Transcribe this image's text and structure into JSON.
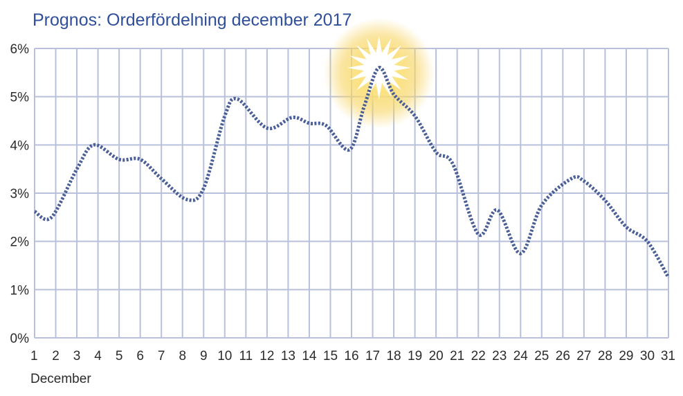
{
  "chart_data": {
    "type": "line",
    "title": "Prognos: Orderfördelning december 2017",
    "xlabel": "December",
    "ylabel": "",
    "x": [
      1,
      2,
      3,
      4,
      5,
      6,
      7,
      8,
      9,
      10,
      11,
      12,
      13,
      14,
      15,
      16,
      17,
      18,
      19,
      20,
      21,
      22,
      23,
      24,
      25,
      26,
      27,
      28,
      29,
      30,
      31
    ],
    "y_ticks": [
      "0%",
      "1%",
      "2%",
      "3%",
      "4%",
      "5%",
      "6%"
    ],
    "ylim": [
      0,
      6
    ],
    "xlim": [
      1,
      31
    ],
    "grid": true,
    "highlight": {
      "x": 17.3,
      "y": 5.6,
      "marker": "sun-burst"
    },
    "series": [
      {
        "values": [
          [
            1.0,
            2.62
          ],
          [
            1.8,
            2.5
          ],
          [
            3.0,
            3.5
          ],
          [
            3.8,
            4.0
          ],
          [
            5.0,
            3.7
          ],
          [
            6.0,
            3.7
          ],
          [
            7.0,
            3.3
          ],
          [
            8.2,
            2.87
          ],
          [
            9.0,
            3.1
          ],
          [
            10.0,
            4.6
          ],
          [
            10.6,
            4.95
          ],
          [
            12.0,
            4.35
          ],
          [
            13.2,
            4.57
          ],
          [
            14.0,
            4.45
          ],
          [
            14.8,
            4.4
          ],
          [
            15.9,
            3.9
          ],
          [
            16.6,
            4.8
          ],
          [
            17.3,
            5.6
          ],
          [
            18.0,
            5.05
          ],
          [
            19.0,
            4.6
          ],
          [
            20.0,
            3.85
          ],
          [
            20.8,
            3.6
          ],
          [
            22.0,
            2.15
          ],
          [
            22.9,
            2.65
          ],
          [
            24.0,
            1.75
          ],
          [
            25.0,
            2.75
          ],
          [
            26.4,
            3.3
          ],
          [
            27.0,
            3.25
          ],
          [
            28.0,
            2.85
          ],
          [
            29.0,
            2.3
          ],
          [
            30.0,
            2.0
          ],
          [
            31.0,
            1.25
          ]
        ]
      }
    ],
    "colors": {
      "line": "#4a5f98",
      "grid": "#b8c0dc",
      "title": "#2f4f9a",
      "sun_glow": "#f5c842",
      "sun_core": "#ffffff"
    }
  }
}
